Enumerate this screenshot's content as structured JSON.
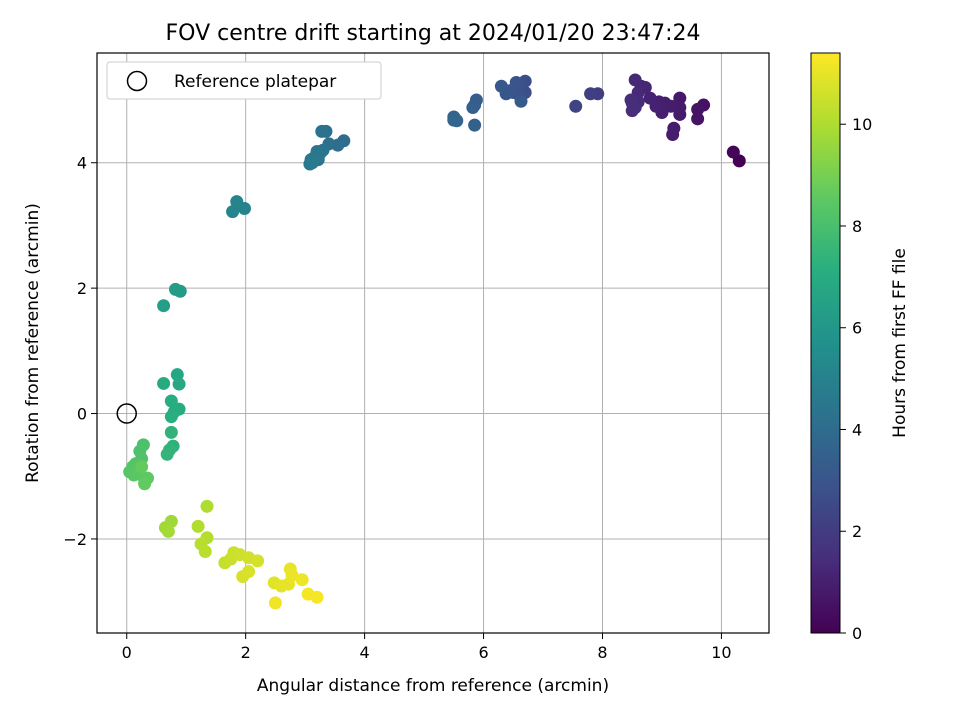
{
  "chart_data": {
    "type": "scatter",
    "title": "FOV centre drift starting at 2024/01/20 23:47:24",
    "xlabel": "Angular distance from reference (arcmin)",
    "ylabel": "Rotation from reference (arcmin)",
    "xlim": [
      -0.5,
      10.8
    ],
    "ylim": [
      -3.5,
      5.75
    ],
    "xticks": [
      "0",
      "2",
      "4",
      "6",
      "8",
      "10"
    ],
    "yticks": [
      "−2",
      "0",
      "2",
      "4"
    ],
    "grid": true,
    "legend_position": "top-left",
    "reference": {
      "label": "Reference platepar",
      "x": 0,
      "y": 0
    },
    "colorbar": {
      "label": "Hours from first FF file",
      "colormap": "viridis",
      "range": [
        0,
        11.4
      ],
      "ticks": [
        "0",
        "2",
        "4",
        "6",
        "8",
        "10"
      ]
    },
    "points": [
      {
        "x": 10.3,
        "y": 4.03,
        "h": 0.0
      },
      {
        "x": 10.2,
        "y": 4.17,
        "h": 0.1
      },
      {
        "x": 9.6,
        "y": 4.7,
        "h": 0.6
      },
      {
        "x": 9.7,
        "y": 4.92,
        "h": 0.55
      },
      {
        "x": 9.6,
        "y": 4.85,
        "h": 0.6
      },
      {
        "x": 9.3,
        "y": 5.03,
        "h": 0.75
      },
      {
        "x": 9.3,
        "y": 4.88,
        "h": 0.8
      },
      {
        "x": 9.3,
        "y": 4.77,
        "h": 0.8
      },
      {
        "x": 9.2,
        "y": 4.55,
        "h": 0.85
      },
      {
        "x": 9.18,
        "y": 4.45,
        "h": 0.9
      },
      {
        "x": 9.15,
        "y": 4.9,
        "h": 0.9
      },
      {
        "x": 9.05,
        "y": 4.95,
        "h": 0.95
      },
      {
        "x": 9.0,
        "y": 4.8,
        "h": 1.0
      },
      {
        "x": 8.95,
        "y": 4.97,
        "h": 1.0
      },
      {
        "x": 8.9,
        "y": 4.9,
        "h": 1.05
      },
      {
        "x": 8.8,
        "y": 5.03,
        "h": 1.1
      },
      {
        "x": 8.72,
        "y": 5.2,
        "h": 1.15
      },
      {
        "x": 8.65,
        "y": 5.22,
        "h": 1.2
      },
      {
        "x": 8.55,
        "y": 5.32,
        "h": 1.25
      },
      {
        "x": 8.6,
        "y": 5.12,
        "h": 1.3
      },
      {
        "x": 8.6,
        "y": 4.97,
        "h": 1.35
      },
      {
        "x": 8.5,
        "y": 4.95,
        "h": 1.4
      },
      {
        "x": 8.55,
        "y": 4.88,
        "h": 1.4
      },
      {
        "x": 8.5,
        "y": 4.83,
        "h": 1.45
      },
      {
        "x": 8.48,
        "y": 5.0,
        "h": 1.45
      },
      {
        "x": 7.92,
        "y": 5.1,
        "h": 2.0
      },
      {
        "x": 7.8,
        "y": 5.1,
        "h": 2.1
      },
      {
        "x": 7.55,
        "y": 4.9,
        "h": 2.3
      },
      {
        "x": 6.7,
        "y": 5.3,
        "h": 2.7
      },
      {
        "x": 6.7,
        "y": 5.12,
        "h": 2.75
      },
      {
        "x": 6.6,
        "y": 5.22,
        "h": 2.8
      },
      {
        "x": 6.6,
        "y": 5.08,
        "h": 2.85
      },
      {
        "x": 6.55,
        "y": 5.28,
        "h": 2.9
      },
      {
        "x": 6.5,
        "y": 5.12,
        "h": 2.95
      },
      {
        "x": 6.45,
        "y": 5.15,
        "h": 3.0
      },
      {
        "x": 6.38,
        "y": 5.1,
        "h": 3.05
      },
      {
        "x": 6.3,
        "y": 5.22,
        "h": 3.1
      },
      {
        "x": 6.63,
        "y": 4.98,
        "h": 3.15
      },
      {
        "x": 5.88,
        "y": 5.0,
        "h": 3.35
      },
      {
        "x": 5.85,
        "y": 4.92,
        "h": 3.4
      },
      {
        "x": 5.82,
        "y": 4.88,
        "h": 3.45
      },
      {
        "x": 5.85,
        "y": 4.6,
        "h": 3.5
      },
      {
        "x": 5.5,
        "y": 4.73,
        "h": 3.6
      },
      {
        "x": 5.55,
        "y": 4.67,
        "h": 3.65
      },
      {
        "x": 5.5,
        "y": 4.68,
        "h": 3.7
      },
      {
        "x": 5.52,
        "y": 4.7,
        "h": 3.75
      },
      {
        "x": 3.65,
        "y": 4.35,
        "h": 4.05
      },
      {
        "x": 3.55,
        "y": 4.28,
        "h": 4.1
      },
      {
        "x": 3.4,
        "y": 4.3,
        "h": 4.15
      },
      {
        "x": 3.35,
        "y": 4.5,
        "h": 4.2
      },
      {
        "x": 3.28,
        "y": 4.5,
        "h": 4.25
      },
      {
        "x": 3.3,
        "y": 4.2,
        "h": 4.3
      },
      {
        "x": 3.25,
        "y": 4.15,
        "h": 4.35
      },
      {
        "x": 3.2,
        "y": 4.18,
        "h": 4.4
      },
      {
        "x": 3.22,
        "y": 4.05,
        "h": 4.45
      },
      {
        "x": 3.15,
        "y": 4.08,
        "h": 4.5
      },
      {
        "x": 3.1,
        "y": 4.05,
        "h": 4.55
      },
      {
        "x": 3.08,
        "y": 3.98,
        "h": 4.6
      },
      {
        "x": 3.12,
        "y": 4.0,
        "h": 4.65
      },
      {
        "x": 1.98,
        "y": 3.27,
        "h": 5.05
      },
      {
        "x": 1.85,
        "y": 3.38,
        "h": 5.1
      },
      {
        "x": 1.78,
        "y": 3.22,
        "h": 5.15
      },
      {
        "x": 0.9,
        "y": 1.95,
        "h": 6.2
      },
      {
        "x": 0.82,
        "y": 1.98,
        "h": 6.25
      },
      {
        "x": 0.62,
        "y": 1.72,
        "h": 6.35
      },
      {
        "x": 0.85,
        "y": 0.62,
        "h": 6.8
      },
      {
        "x": 0.88,
        "y": 0.47,
        "h": 6.85
      },
      {
        "x": 0.62,
        "y": 0.48,
        "h": 6.9
      },
      {
        "x": 0.88,
        "y": 0.07,
        "h": 7.0
      },
      {
        "x": 0.75,
        "y": 0.2,
        "h": 7.05
      },
      {
        "x": 0.8,
        "y": 0.03,
        "h": 7.1
      },
      {
        "x": 0.75,
        "y": -0.05,
        "h": 7.15
      },
      {
        "x": 0.78,
        "y": -0.52,
        "h": 7.3
      },
      {
        "x": 0.75,
        "y": -0.3,
        "h": 7.35
      },
      {
        "x": 0.72,
        "y": -0.58,
        "h": 7.4
      },
      {
        "x": 0.68,
        "y": -0.65,
        "h": 7.45
      },
      {
        "x": 0.28,
        "y": -0.5,
        "h": 8.1
      },
      {
        "x": 0.22,
        "y": -0.6,
        "h": 8.15
      },
      {
        "x": 0.25,
        "y": -0.72,
        "h": 8.2
      },
      {
        "x": 0.15,
        "y": -0.8,
        "h": 8.25
      },
      {
        "x": 0.1,
        "y": -0.85,
        "h": 8.3
      },
      {
        "x": 0.05,
        "y": -0.93,
        "h": 8.35
      },
      {
        "x": 0.12,
        "y": -0.98,
        "h": 8.4
      },
      {
        "x": 0.2,
        "y": -0.92,
        "h": 8.45
      },
      {
        "x": 0.3,
        "y": -1.05,
        "h": 8.5
      },
      {
        "x": 0.35,
        "y": -1.03,
        "h": 8.55
      },
      {
        "x": 0.3,
        "y": -1.12,
        "h": 8.6
      },
      {
        "x": 0.25,
        "y": -0.85,
        "h": 8.65
      },
      {
        "x": 0.75,
        "y": -1.72,
        "h": 9.7
      },
      {
        "x": 0.65,
        "y": -1.82,
        "h": 9.75
      },
      {
        "x": 0.7,
        "y": -1.88,
        "h": 9.8
      },
      {
        "x": 1.35,
        "y": -1.48,
        "h": 10.0
      },
      {
        "x": 1.2,
        "y": -1.8,
        "h": 10.05
      },
      {
        "x": 1.35,
        "y": -1.98,
        "h": 10.1
      },
      {
        "x": 1.25,
        "y": -2.08,
        "h": 10.15
      },
      {
        "x": 1.32,
        "y": -2.2,
        "h": 10.2
      },
      {
        "x": 1.65,
        "y": -2.38,
        "h": 10.4
      },
      {
        "x": 1.75,
        "y": -2.32,
        "h": 10.45
      },
      {
        "x": 1.8,
        "y": -2.22,
        "h": 10.5
      },
      {
        "x": 1.9,
        "y": -2.25,
        "h": 10.55
      },
      {
        "x": 2.05,
        "y": -2.3,
        "h": 10.6
      },
      {
        "x": 2.2,
        "y": -2.35,
        "h": 10.65
      },
      {
        "x": 1.95,
        "y": -2.6,
        "h": 10.7
      },
      {
        "x": 2.05,
        "y": -2.52,
        "h": 10.75
      },
      {
        "x": 2.48,
        "y": -2.7,
        "h": 10.9
      },
      {
        "x": 2.6,
        "y": -2.75,
        "h": 10.95
      },
      {
        "x": 2.72,
        "y": -2.72,
        "h": 11.0
      },
      {
        "x": 2.75,
        "y": -2.48,
        "h": 11.05
      },
      {
        "x": 2.78,
        "y": -2.58,
        "h": 11.1
      },
      {
        "x": 2.95,
        "y": -2.65,
        "h": 11.15
      },
      {
        "x": 2.5,
        "y": -3.02,
        "h": 11.2
      },
      {
        "x": 3.05,
        "y": -2.88,
        "h": 11.25
      },
      {
        "x": 3.2,
        "y": -2.93,
        "h": 11.3
      }
    ]
  }
}
